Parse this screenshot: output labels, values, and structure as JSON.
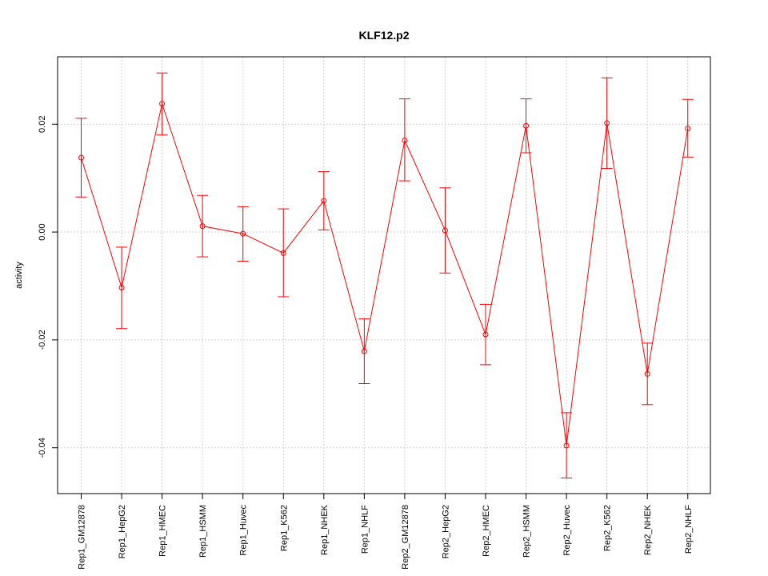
{
  "chart_data": {
    "type": "line",
    "title": "KLF12.p2",
    "xlabel": "",
    "ylabel": "activity",
    "ylim": [
      -0.0485,
      0.0325
    ],
    "grid": true,
    "line_color": "#ff0000",
    "grid_color": "#d3d3d3",
    "yticks": [
      {
        "value": -0.04,
        "label": "-0.04"
      },
      {
        "value": -0.02,
        "label": "-0.02"
      },
      {
        "value": 0.0,
        "label": "0.00"
      },
      {
        "value": 0.02,
        "label": "0.02"
      }
    ],
    "categories": [
      "Rep1_GM12878",
      "Rep1_HepG2",
      "Rep1_HMEC",
      "Rep1_HSMM",
      "Rep1_Huvec",
      "Rep1_K562",
      "Rep1_NHEK",
      "Rep1_NHLF",
      "Rep2_GM12878",
      "Rep2_HepG2",
      "Rep2_HMEC",
      "Rep2_HSMM",
      "Rep2_Huvec",
      "Rep2_K562",
      "Rep2_NHEK",
      "Rep2_NHLF"
    ],
    "values": [
      0.0138,
      -0.0103,
      0.0238,
      0.0011,
      -0.0003,
      -0.0039,
      0.0058,
      -0.0221,
      0.017,
      0.0003,
      -0.019,
      0.0197,
      -0.0396,
      0.0202,
      -0.0263,
      0.0192
    ],
    "upper": [
      0.0211,
      -0.0028,
      0.0295,
      0.0068,
      0.0047,
      0.0043,
      0.0112,
      -0.0161,
      0.0247,
      0.0082,
      -0.0134,
      0.0247,
      -0.0335,
      0.0286,
      -0.0206,
      0.0246
    ],
    "lower": [
      0.0065,
      -0.0179,
      0.018,
      -0.0046,
      -0.0054,
      -0.012,
      0.0004,
      -0.0281,
      0.0095,
      -0.0076,
      -0.0246,
      0.0147,
      -0.0456,
      0.0118,
      -0.032,
      0.0139
    ]
  }
}
